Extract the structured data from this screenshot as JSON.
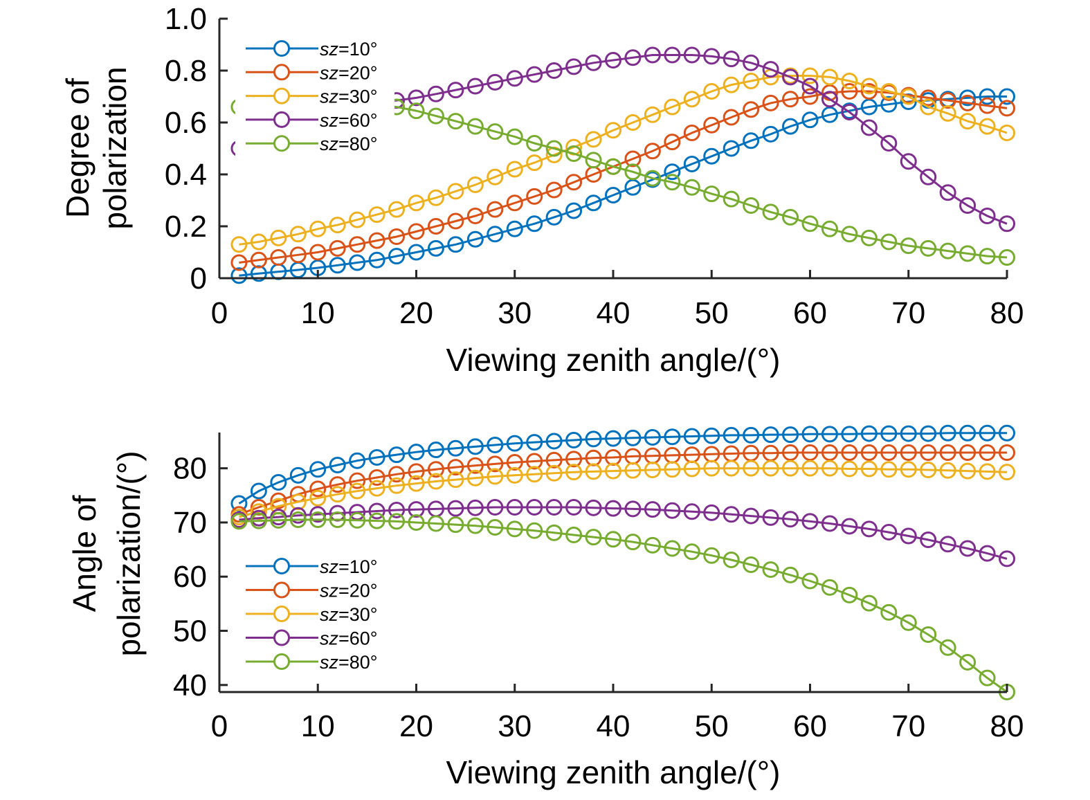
{
  "chart_data": [
    {
      "type": "line",
      "xlabel": "Viewing zenith angle/(°)",
      "ylabel": [
        "Degree of",
        "polarization"
      ],
      "xlim": [
        0,
        80
      ],
      "ylim": [
        0,
        1.0
      ],
      "xticks": [
        "0",
        "10",
        "20",
        "30",
        "40",
        "50",
        "60",
        "70",
        "80"
      ],
      "yticks": [
        "0",
        "0.2",
        "0.4",
        "0.6",
        "0.8",
        "1.0"
      ],
      "grid": false,
      "legend_position": "top-left",
      "marker": "open-circle",
      "x": [
        2,
        4,
        6,
        8,
        10,
        12,
        14,
        16,
        18,
        20,
        22,
        24,
        26,
        28,
        30,
        32,
        34,
        36,
        38,
        40,
        42,
        44,
        46,
        48,
        50,
        52,
        54,
        56,
        58,
        60,
        62,
        64,
        66,
        68,
        70,
        72,
        74,
        76,
        78,
        80
      ],
      "series": [
        {
          "name_prefix": "sz",
          "name_suffix": "=10°",
          "color": "#0072BD",
          "values": [
            0.01,
            0.018,
            0.025,
            0.032,
            0.04,
            0.05,
            0.06,
            0.07,
            0.085,
            0.1,
            0.115,
            0.13,
            0.15,
            0.17,
            0.19,
            0.21,
            0.235,
            0.26,
            0.29,
            0.32,
            0.35,
            0.38,
            0.41,
            0.44,
            0.47,
            0.5,
            0.53,
            0.555,
            0.585,
            0.61,
            0.63,
            0.645,
            0.66,
            0.67,
            0.68,
            0.685,
            0.69,
            0.695,
            0.7,
            0.7
          ]
        },
        {
          "name_prefix": "sz",
          "name_suffix": "=20°",
          "color": "#D95319",
          "values": [
            0.06,
            0.07,
            0.08,
            0.09,
            0.1,
            0.115,
            0.13,
            0.145,
            0.16,
            0.18,
            0.2,
            0.22,
            0.24,
            0.265,
            0.29,
            0.315,
            0.34,
            0.37,
            0.4,
            0.43,
            0.46,
            0.49,
            0.525,
            0.56,
            0.59,
            0.62,
            0.65,
            0.675,
            0.69,
            0.7,
            0.715,
            0.72,
            0.72,
            0.715,
            0.705,
            0.695,
            0.685,
            0.675,
            0.665,
            0.655
          ]
        },
        {
          "name_prefix": "sz",
          "name_suffix": "=30°",
          "color": "#EDB120",
          "values": [
            0.13,
            0.14,
            0.155,
            0.17,
            0.19,
            0.205,
            0.225,
            0.245,
            0.265,
            0.29,
            0.31,
            0.335,
            0.36,
            0.39,
            0.42,
            0.445,
            0.475,
            0.505,
            0.535,
            0.57,
            0.6,
            0.63,
            0.66,
            0.69,
            0.72,
            0.745,
            0.76,
            0.775,
            0.78,
            0.78,
            0.775,
            0.76,
            0.74,
            0.72,
            0.7,
            0.66,
            0.635,
            0.605,
            0.585,
            0.56
          ]
        },
        {
          "name_prefix": "sz",
          "name_suffix": "=60°",
          "color": "#7E2F8E",
          "values": [
            0.5,
            0.55,
            0.59,
            0.62,
            0.645,
            0.66,
            0.67,
            0.68,
            0.685,
            0.695,
            0.71,
            0.725,
            0.74,
            0.755,
            0.77,
            0.785,
            0.8,
            0.815,
            0.83,
            0.84,
            0.85,
            0.86,
            0.86,
            0.86,
            0.855,
            0.845,
            0.83,
            0.805,
            0.775,
            0.74,
            0.69,
            0.64,
            0.58,
            0.52,
            0.45,
            0.39,
            0.33,
            0.28,
            0.24,
            0.21
          ]
        },
        {
          "name_prefix": "sz",
          "name_suffix": "=80°",
          "color": "#77AC30",
          "values": [
            0.66,
            0.665,
            0.67,
            0.67,
            0.67,
            0.67,
            0.67,
            0.665,
            0.66,
            0.645,
            0.625,
            0.605,
            0.585,
            0.565,
            0.545,
            0.52,
            0.5,
            0.48,
            0.455,
            0.43,
            0.41,
            0.385,
            0.37,
            0.35,
            0.325,
            0.305,
            0.28,
            0.255,
            0.235,
            0.21,
            0.19,
            0.17,
            0.155,
            0.14,
            0.125,
            0.115,
            0.105,
            0.095,
            0.085,
            0.08
          ]
        }
      ]
    },
    {
      "type": "line",
      "xlabel": "Viewing zenith angle/(°)",
      "ylabel": [
        "Angle of",
        "polarization/(°)"
      ],
      "xlim": [
        0,
        80
      ],
      "ylim": [
        38.7,
        86.6
      ],
      "xticks": [
        "0",
        "10",
        "20",
        "30",
        "40",
        "50",
        "60",
        "70",
        "80"
      ],
      "yticks": [
        "40",
        "50",
        "60",
        "70",
        "80"
      ],
      "grid": false,
      "legend_position": "bottom-left",
      "marker": "open-circle",
      "x": [
        2,
        4,
        6,
        8,
        10,
        12,
        14,
        16,
        18,
        20,
        22,
        24,
        26,
        28,
        30,
        32,
        34,
        36,
        38,
        40,
        42,
        44,
        46,
        48,
        50,
        52,
        54,
        56,
        58,
        60,
        62,
        64,
        66,
        68,
        70,
        72,
        74,
        76,
        78,
        80
      ],
      "series": [
        {
          "name_prefix": "sz",
          "name_suffix": "=10°",
          "color": "#0072BD",
          "values": [
            73.5,
            75.8,
            77.4,
            78.7,
            79.8,
            80.6,
            81.4,
            82.0,
            82.5,
            83.0,
            83.4,
            83.7,
            84.0,
            84.3,
            84.6,
            84.8,
            85.0,
            85.2,
            85.4,
            85.5,
            85.6,
            85.7,
            85.8,
            85.9,
            86.0,
            86.1,
            86.1,
            86.2,
            86.2,
            86.3,
            86.3,
            86.3,
            86.4,
            86.4,
            86.4,
            86.4,
            86.5,
            86.5,
            86.5,
            86.5
          ]
        },
        {
          "name_prefix": "sz",
          "name_suffix": "=20°",
          "color": "#D95319",
          "values": [
            71.5,
            72.8,
            74.0,
            75.2,
            76.2,
            77.0,
            77.7,
            78.3,
            78.9,
            79.4,
            79.8,
            80.2,
            80.5,
            80.8,
            81.1,
            81.3,
            81.5,
            81.7,
            81.9,
            82.0,
            82.2,
            82.3,
            82.4,
            82.5,
            82.6,
            82.7,
            82.8,
            82.8,
            82.9,
            82.9,
            82.9,
            82.9,
            82.9,
            82.9,
            82.9,
            82.9,
            82.9,
            82.9,
            82.9,
            82.9
          ]
        },
        {
          "name_prefix": "sz",
          "name_suffix": "=30°",
          "color": "#EDB120",
          "values": [
            71.0,
            72.0,
            73.0,
            73.8,
            74.5,
            75.2,
            75.8,
            76.3,
            76.8,
            77.2,
            77.6,
            77.9,
            78.2,
            78.5,
            78.7,
            78.9,
            79.1,
            79.3,
            79.4,
            79.5,
            79.6,
            79.7,
            79.8,
            79.9,
            80.0,
            80.0,
            80.0,
            80.0,
            80.0,
            80.0,
            80.0,
            79.9,
            79.9,
            79.8,
            79.8,
            79.7,
            79.6,
            79.5,
            79.4,
            79.3
          ]
        },
        {
          "name_prefix": "sz",
          "name_suffix": "=60°",
          "color": "#7E2F8E",
          "values": [
            70.5,
            70.8,
            71.0,
            71.3,
            71.5,
            71.7,
            71.9,
            72.1,
            72.3,
            72.4,
            72.5,
            72.6,
            72.7,
            72.8,
            72.8,
            72.8,
            72.8,
            72.8,
            72.7,
            72.6,
            72.5,
            72.4,
            72.2,
            72.0,
            71.8,
            71.5,
            71.2,
            70.9,
            70.6,
            70.2,
            69.8,
            69.3,
            68.8,
            68.2,
            67.5,
            66.8,
            66.0,
            65.2,
            64.3,
            63.3
          ]
        },
        {
          "name_prefix": "sz",
          "name_suffix": "=80°",
          "color": "#77AC30",
          "values": [
            70.2,
            70.3,
            70.4,
            70.5,
            70.5,
            70.5,
            70.4,
            70.3,
            70.2,
            70.0,
            69.8,
            69.6,
            69.4,
            69.1,
            68.8,
            68.5,
            68.1,
            67.7,
            67.3,
            66.9,
            66.4,
            65.8,
            65.2,
            64.6,
            63.9,
            63.1,
            62.2,
            61.3,
            60.3,
            59.2,
            58.0,
            56.6,
            55.1,
            53.4,
            51.5,
            49.3,
            46.9,
            44.2,
            41.3,
            38.7
          ]
        }
      ]
    }
  ]
}
